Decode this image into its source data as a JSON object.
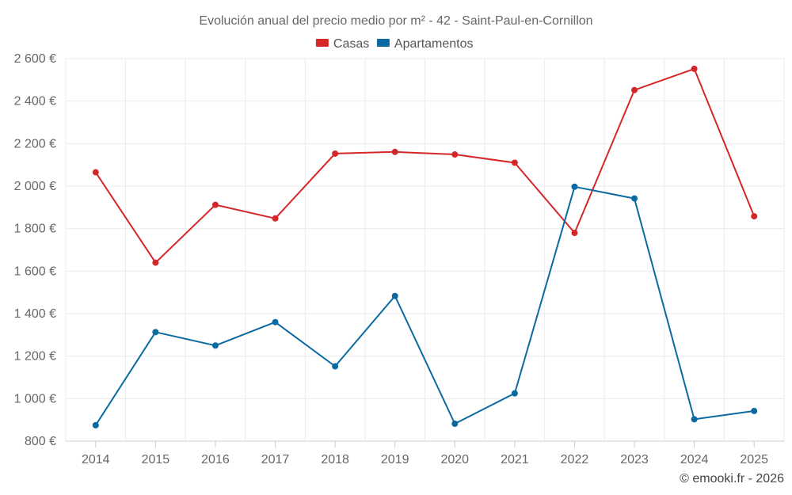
{
  "chart_data": {
    "type": "line",
    "title": "Evolución anual del precio medio por m² - 42 - Saint-Paul-en-Cornillon",
    "categories": [
      "2014",
      "2015",
      "2016",
      "2017",
      "2018",
      "2019",
      "2020",
      "2021",
      "2022",
      "2023",
      "2024",
      "2025"
    ],
    "ylim": [
      800,
      2600
    ],
    "yticks": [
      800,
      1000,
      1200,
      1400,
      1600,
      1800,
      2000,
      2200,
      2400,
      2600
    ],
    "ytick_labels": [
      "800 €",
      "1 000 €",
      "1 200 €",
      "1 400 €",
      "1 600 €",
      "1 800 €",
      "2 000 €",
      "2 200 €",
      "2 400 €",
      "2 600 €"
    ],
    "grid": true,
    "legend_position": "top-center",
    "series": [
      {
        "name": "Casas",
        "color": "#d62728",
        "values": [
          2065,
          1640,
          1912,
          1848,
          2153,
          2161,
          2149,
          2110,
          1780,
          2452,
          2552,
          1858
        ]
      },
      {
        "name": "Apartamentos",
        "color": "#0a6aa1",
        "values": [
          875,
          1313,
          1250,
          1360,
          1152,
          1483,
          882,
          1025,
          1997,
          1942,
          903,
          942
        ]
      }
    ],
    "credit": "© emooki.fr - 2026"
  }
}
